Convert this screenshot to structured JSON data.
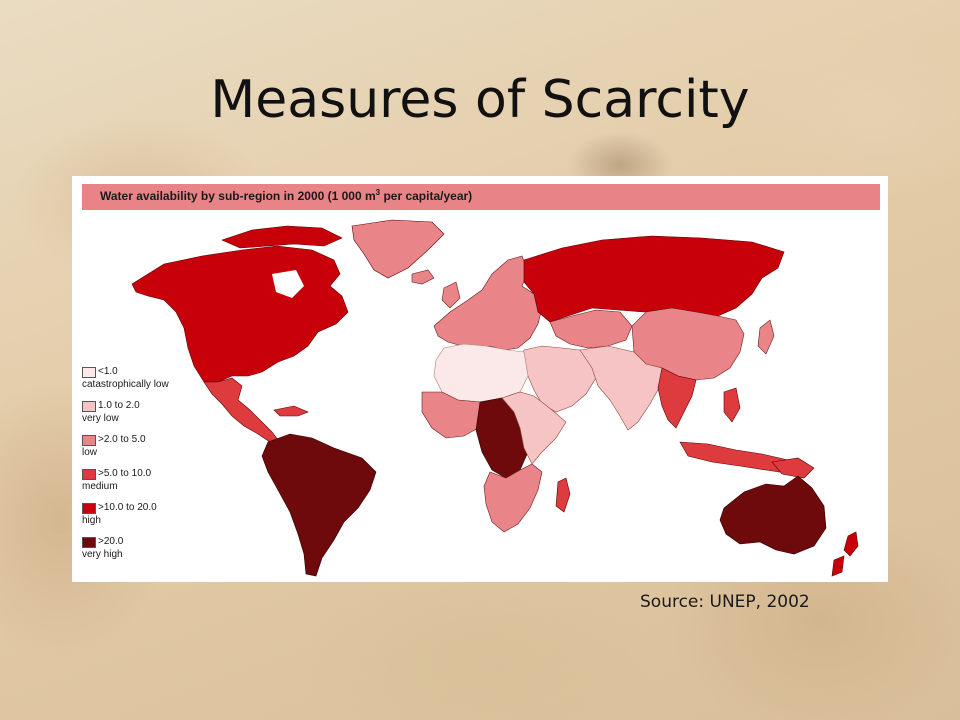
{
  "slide": {
    "title": "Measures of Scarcity",
    "source": "Source: UNEP, 2002"
  },
  "map": {
    "header_prefix": "Water availability by sub-region in 2000 (1 000 m",
    "header_sup": "3",
    "header_suffix": " per capita/year)",
    "header_color": "#e88488",
    "legend": [
      {
        "range": "<1.0",
        "label": "catastrophically low",
        "color": "#fbe8e8"
      },
      {
        "range": "1.0 to 2.0",
        "label": "very low",
        "color": "#f6c4c4"
      },
      {
        "range": ">2.0 to 5.0",
        "label": "low",
        "color": "#e98589"
      },
      {
        "range": ">5.0 to 10.0",
        "label": "medium",
        "color": "#de3b3f"
      },
      {
        "range": ">10.0 to 20.0",
        "label": "high",
        "color": "#c8000a"
      },
      {
        "range": ">20.0",
        "label": "very high",
        "color": "#6e0a0c"
      }
    ],
    "region_colors": {
      "north_america": "#c8000a",
      "greenland": "#e98589",
      "central_america": "#de3b3f",
      "south_america": "#6e0a0c",
      "europe": "#e98589",
      "russia": "#c8000a",
      "north_africa": "#fbe8e8",
      "west_africa": "#e98589",
      "central_africa": "#6e0a0c",
      "east_africa": "#f6c4c4",
      "southern_africa": "#e98589",
      "middle_east": "#f6c4c4",
      "south_asia": "#f6c4c4",
      "central_asia": "#e98589",
      "east_asia": "#e98589",
      "southeast_asia": "#de3b3f",
      "australia": "#6e0a0c",
      "new_zealand": "#c8000a",
      "madagascar": "#de3b3f"
    }
  }
}
